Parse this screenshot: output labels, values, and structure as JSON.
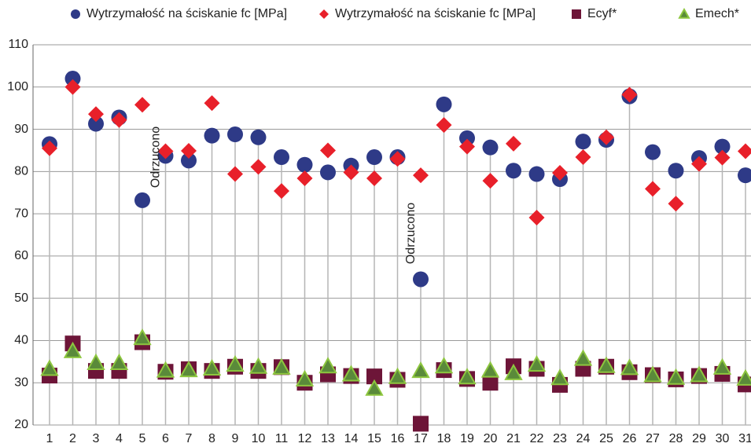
{
  "chart_data": {
    "type": "scatter",
    "categories": [
      "1",
      "2",
      "3",
      "4",
      "5",
      "6",
      "7",
      "8",
      "9",
      "10",
      "11",
      "12",
      "13",
      "14",
      "15",
      "16",
      "17",
      "18",
      "19",
      "20",
      "21",
      "22",
      "23",
      "24",
      "25",
      "26",
      "27",
      "28",
      "29",
      "30",
      "31"
    ],
    "series": [
      {
        "name": "Wytrzymałość na ściskanie fc [MPa]",
        "color": "#2e3a87",
        "marker": "circle",
        "values": [
          86.5,
          102,
          91.3,
          92.8,
          73.2,
          83.7,
          82.6,
          88.5,
          88.8,
          88.1,
          83.4,
          81.6,
          79.8,
          81.4,
          83.4,
          83.4,
          54.5,
          95.9,
          87.9,
          85.7,
          80.2,
          79.4,
          78.2,
          87.1,
          87.5,
          97.8,
          84.6,
          80.2,
          83.2,
          85.9,
          79.1
        ]
      },
      {
        "name": "Wytrzymałość na ściskanie fc [MPa]",
        "color": "#e8202a",
        "marker": "diamond",
        "values": [
          85.5,
          100,
          93.6,
          92.2,
          95.8,
          84.8,
          84.9,
          96.2,
          79.4,
          81.1,
          75.4,
          78.4,
          85,
          79.8,
          78.4,
          83,
          79.1,
          91,
          85.9,
          77.8,
          86.6,
          69.1,
          79.7,
          83.4,
          88.1,
          98.2,
          75.9,
          72.4,
          81.8,
          83.3,
          84.8
        ]
      },
      {
        "name": "Ecyf*",
        "color": "#6d1538",
        "marker": "square",
        "values": [
          31.7,
          39.3,
          32.8,
          32.8,
          39.6,
          32.6,
          33.2,
          32.8,
          33.8,
          32.8,
          33.7,
          30,
          32,
          31.6,
          31.5,
          30.7,
          20.3,
          33,
          30.9,
          30,
          33.9,
          33.3,
          29.5,
          33.3,
          33.8,
          32.5,
          31.8,
          30.8,
          31.6,
          32.1,
          29.6
        ]
      },
      {
        "name": "Emech*",
        "color": "#5a8a3a",
        "marker": "triangle",
        "values": [
          33.3,
          37.5,
          34.7,
          34.7,
          40.6,
          32.9,
          33,
          33.4,
          34.3,
          33.8,
          33.6,
          30.8,
          33.9,
          32,
          28.6,
          31.4,
          32.8,
          33.9,
          31.3,
          32.9,
          32.3,
          34.3,
          31.1,
          35.7,
          34,
          33.5,
          31.8,
          31.2,
          31.8,
          33.6,
          31
        ]
      }
    ],
    "annotations": [
      "Odrzucono",
      "Odrzucono"
    ],
    "ylim": [
      20,
      110
    ],
    "yticks": [
      20,
      30,
      40,
      50,
      60,
      70,
      80,
      90,
      100,
      110
    ],
    "grid": true
  }
}
